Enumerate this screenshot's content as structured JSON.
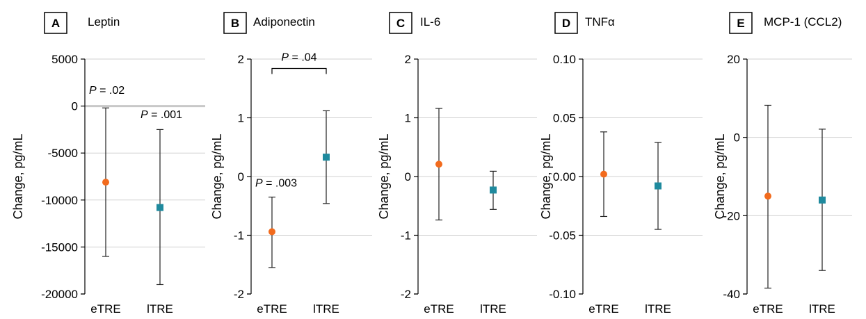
{
  "colors": {
    "eTRE": "#f26b1d",
    "lTRE": "#1f8a9e"
  },
  "chart_data": [
    {
      "type": "scatter",
      "letter": "A",
      "title": "Leptin",
      "ylabel": "Change, pg/mL",
      "ylim": [
        -20000,
        5000
      ],
      "yticks": [
        5000,
        0,
        -5000,
        -10000,
        -15000,
        -20000
      ],
      "ytick_labels": [
        "5000",
        "0",
        "-5000",
        "-10000",
        "-15000",
        "-20000"
      ],
      "categories": [
        "eTRE",
        "lTRE"
      ],
      "zero_band": true,
      "series": [
        {
          "group": "eTRE",
          "marker": "circle",
          "color": "#f26b1d",
          "value": -8100,
          "lower": -16000,
          "upper": -200
        },
        {
          "group": "lTRE",
          "marker": "square",
          "color": "#1f8a9e",
          "value": -10800,
          "lower": -19000,
          "upper": -2500
        }
      ],
      "annotations": [
        {
          "kind": "pvalue",
          "p": "P",
          "rest": " = .02",
          "x_cat": 0,
          "dx": -24,
          "y_value": 1300
        },
        {
          "kind": "pvalue",
          "p": "P",
          "rest": " = .001",
          "x_cat": 1,
          "dx": -28,
          "y_value": -1300
        }
      ]
    },
    {
      "type": "scatter",
      "letter": "B",
      "title": "Adiponectin",
      "ylabel": "Change, pg/mL",
      "ylim": [
        -2,
        2
      ],
      "yticks": [
        2,
        1,
        0,
        -1,
        -2
      ],
      "ytick_labels": [
        "2",
        "1",
        "0",
        "-1",
        "-2"
      ],
      "categories": [
        "eTRE",
        "lTRE"
      ],
      "zero_band": false,
      "series": [
        {
          "group": "eTRE",
          "marker": "circle",
          "color": "#f26b1d",
          "value": -0.94,
          "lower": -1.55,
          "upper": -0.35
        },
        {
          "group": "lTRE",
          "marker": "square",
          "color": "#1f8a9e",
          "value": 0.33,
          "lower": -0.46,
          "upper": 1.12
        }
      ],
      "annotations": [
        {
          "kind": "pvalue",
          "p": "P",
          "rest": " = .003",
          "x_cat": 0,
          "dx": -24,
          "y_value": -0.17
        },
        {
          "kind": "bracket",
          "p": "P",
          "rest": " = .04",
          "from_cat": 0,
          "to_cat": 1,
          "y_value": 1.84,
          "label_y_value": 1.97
        }
      ]
    },
    {
      "type": "scatter",
      "letter": "C",
      "title": "IL-6",
      "ylabel": "Change, pg/mL",
      "ylim": [
        -2,
        2
      ],
      "yticks": [
        2,
        1,
        0,
        -1,
        -2
      ],
      "ytick_labels": [
        "2",
        "1",
        "0",
        "-1",
        "-2"
      ],
      "categories": [
        "eTRE",
        "lTRE"
      ],
      "zero_band": false,
      "series": [
        {
          "group": "eTRE",
          "marker": "circle",
          "color": "#f26b1d",
          "value": 0.21,
          "lower": -0.74,
          "upper": 1.16
        },
        {
          "group": "lTRE",
          "marker": "square",
          "color": "#1f8a9e",
          "value": -0.23,
          "lower": -0.56,
          "upper": 0.09
        }
      ],
      "annotations": []
    },
    {
      "type": "scatter",
      "letter": "D",
      "title": "TNFα",
      "ylabel": "Change, pg/mL",
      "ylim": [
        -0.1,
        0.1
      ],
      "yticks": [
        0.1,
        0.05,
        0.0,
        -0.05,
        -0.1
      ],
      "ytick_labels": [
        "0.10",
        "0.05",
        "0.00",
        "-0.05",
        "-0.10"
      ],
      "categories": [
        "eTRE",
        "lTRE"
      ],
      "zero_band": false,
      "series": [
        {
          "group": "eTRE",
          "marker": "circle",
          "color": "#f26b1d",
          "value": 0.002,
          "lower": -0.034,
          "upper": 0.038
        },
        {
          "group": "lTRE",
          "marker": "square",
          "color": "#1f8a9e",
          "value": -0.008,
          "lower": -0.045,
          "upper": 0.029
        }
      ],
      "annotations": []
    },
    {
      "type": "scatter",
      "letter": "E",
      "title": "MCP-1 (CCL2)",
      "ylabel": "Change, pg/mL",
      "ylim": [
        -40,
        20
      ],
      "yticks": [
        20,
        0,
        -20,
        -40
      ],
      "ytick_labels": [
        "20",
        "0",
        "-20",
        "-40"
      ],
      "categories": [
        "eTRE",
        "lTRE"
      ],
      "zero_band": false,
      "series": [
        {
          "group": "eTRE",
          "marker": "circle",
          "color": "#f26b1d",
          "value": -15,
          "lower": -38.5,
          "upper": 8.2
        },
        {
          "group": "lTRE",
          "marker": "square",
          "color": "#1f8a9e",
          "value": -16,
          "lower": -34,
          "upper": 2.1
        }
      ],
      "annotations": []
    }
  ]
}
